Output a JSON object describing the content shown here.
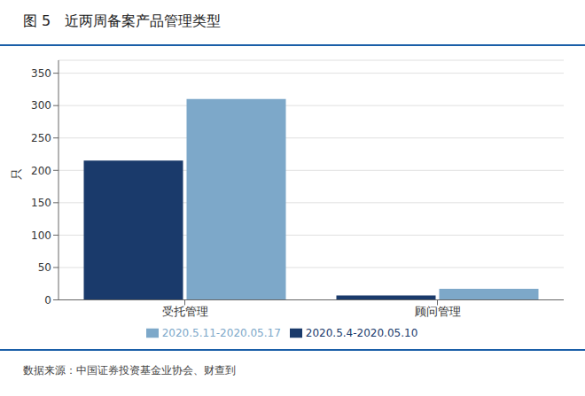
{
  "chart_data": {
    "type": "bar",
    "title": "图 5   近两周备案产品管理类型",
    "ylabel": "只",
    "annotations": [
      "数据来源：中国证券投资基金业协会、财查到"
    ],
    "categories": [
      "受托管理",
      "顾问管理"
    ],
    "series": [
      {
        "name": "2020.5.4-2020.05.10",
        "color": "#1a3a6b",
        "values": [
          215,
          7
        ]
      },
      {
        "name": "2020.5.11-2020.05.17",
        "color": "#7da8c9",
        "values": [
          310,
          17
        ]
      }
    ],
    "ylim": [
      0,
      370
    ],
    "yticks": [
      0,
      50,
      100,
      150,
      200,
      250,
      300,
      350
    ],
    "grid": true,
    "legend": "bottom"
  }
}
